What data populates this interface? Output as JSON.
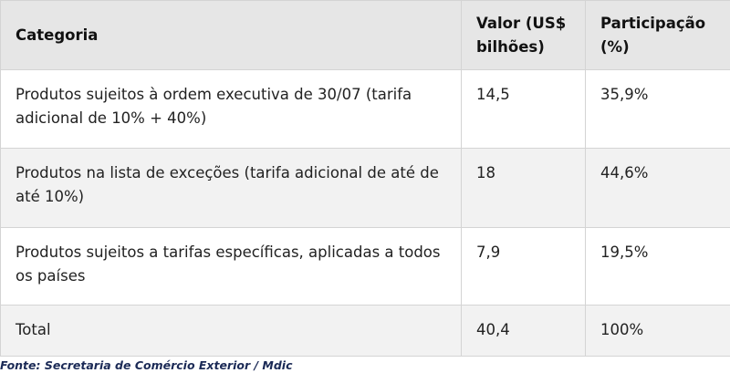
{
  "table": {
    "header": [
      "Categoria",
      "Valor (US$ bilhões)",
      "Participação (%)"
    ],
    "rows": [
      [
        "Produtos sujeitos à ordem executiva de 30/07 (tarifa adicional de 10% + 40%)",
        "14,5",
        "35,9%"
      ],
      [
        "Produtos na lista de exceções (tarifa adicional de até de até 10%)",
        "18",
        "44,6%"
      ],
      [
        "Produtos sujeitos a tarifas específicas, aplicadas a todos os países",
        "7,9",
        "19,5%"
      ],
      [
        "Total",
        "40,4",
        "100%"
      ]
    ]
  },
  "source": "Fonte: Secretaria de Comércio Exterior / Mdic"
}
